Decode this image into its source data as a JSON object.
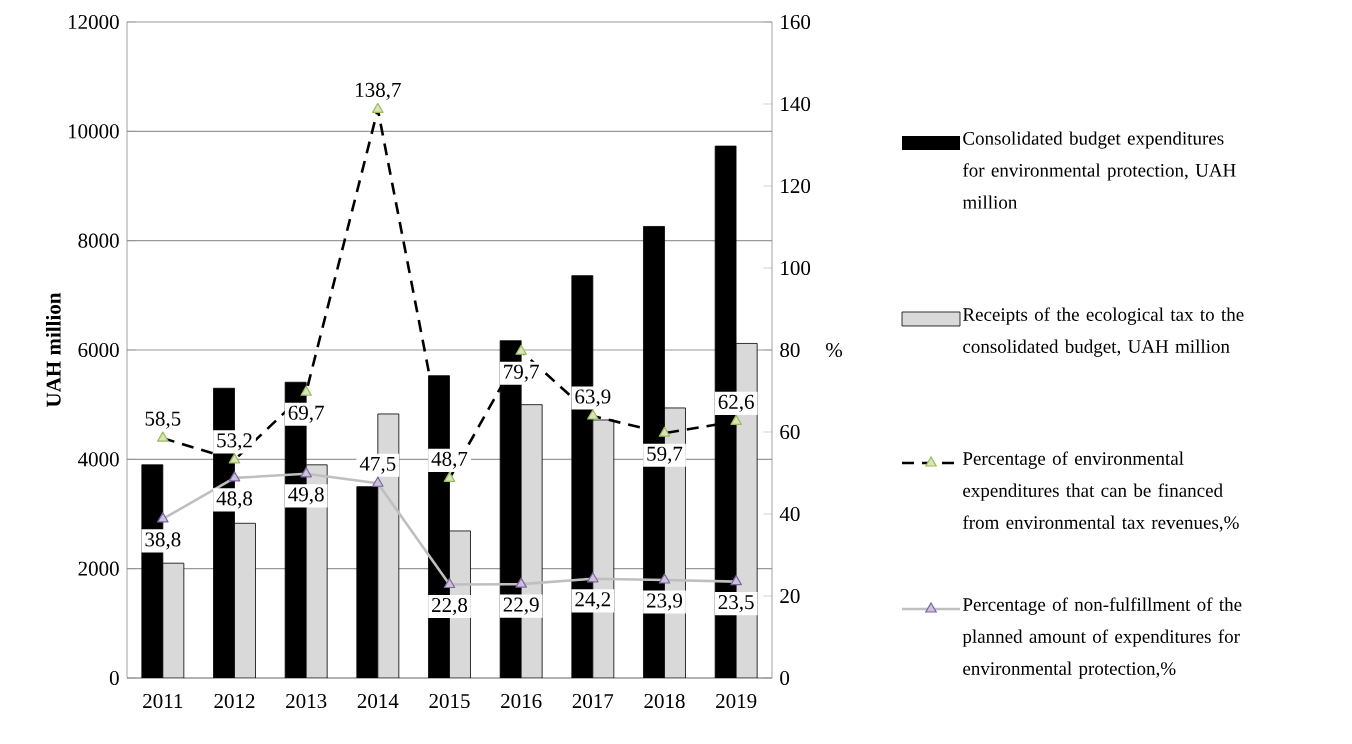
{
  "chart_data": {
    "type": "bar",
    "ylabel": "UAH million",
    "y2label": "%",
    "categories": [
      "2011",
      "2012",
      "2013",
      "2014",
      "2015",
      "2016",
      "2017",
      "2018",
      "2019"
    ],
    "series": [
      {
        "name": "Consolidated budget expenditures for environmental protection, UAH million",
        "color": "#000000",
        "values": [
          3900,
          5300,
          5410,
          3500,
          5530,
          6170,
          7360,
          8260,
          9730
        ]
      },
      {
        "name": "Receipts of the ecological tax to the consolidated budget, UAH million",
        "color": "#d9d9d9",
        "values": [
          2100,
          2830,
          3900,
          4830,
          2690,
          5000,
          4720,
          4940,
          6120
        ]
      },
      {
        "name": "Percentage of environmental expenditures that can be financed from environmental tax revenues,%",
        "type": "line",
        "axis": "y2",
        "color": "#000000",
        "line_style": "dashed",
        "marker": "triangle",
        "values": [
          58.5,
          53.2,
          69.7,
          138.7,
          48.7,
          79.7,
          63.9,
          59.7,
          62.6
        ],
        "value_labels": [
          "58,5",
          "53,2",
          "69,7",
          "138,7",
          "48,7",
          "79,7",
          "63,9",
          "59,7",
          "62,6"
        ]
      },
      {
        "name": "Percentage of non-fulfillment of the planned amount of expenditures for environmental protection,%",
        "type": "line",
        "axis": "y2",
        "color": "#bfbfbf",
        "line_style": "solid",
        "marker": "triangle",
        "values": [
          38.8,
          48.8,
          49.8,
          47.5,
          22.8,
          22.9,
          24.2,
          23.9,
          23.5
        ],
        "value_labels": [
          "38,8",
          "48,8",
          "49,8",
          "47,5",
          "22,8",
          "22,9",
          "24,2",
          "23,9",
          "23,5"
        ]
      }
    ],
    "ylim": [
      0,
      12000
    ],
    "yticks": [
      0,
      2000,
      4000,
      6000,
      8000,
      10000,
      12000
    ],
    "y2lim": [
      0,
      160
    ],
    "y2ticks": [
      0,
      20,
      40,
      60,
      80,
      100,
      120,
      140,
      160
    ],
    "grid": "y",
    "legend": "right"
  }
}
